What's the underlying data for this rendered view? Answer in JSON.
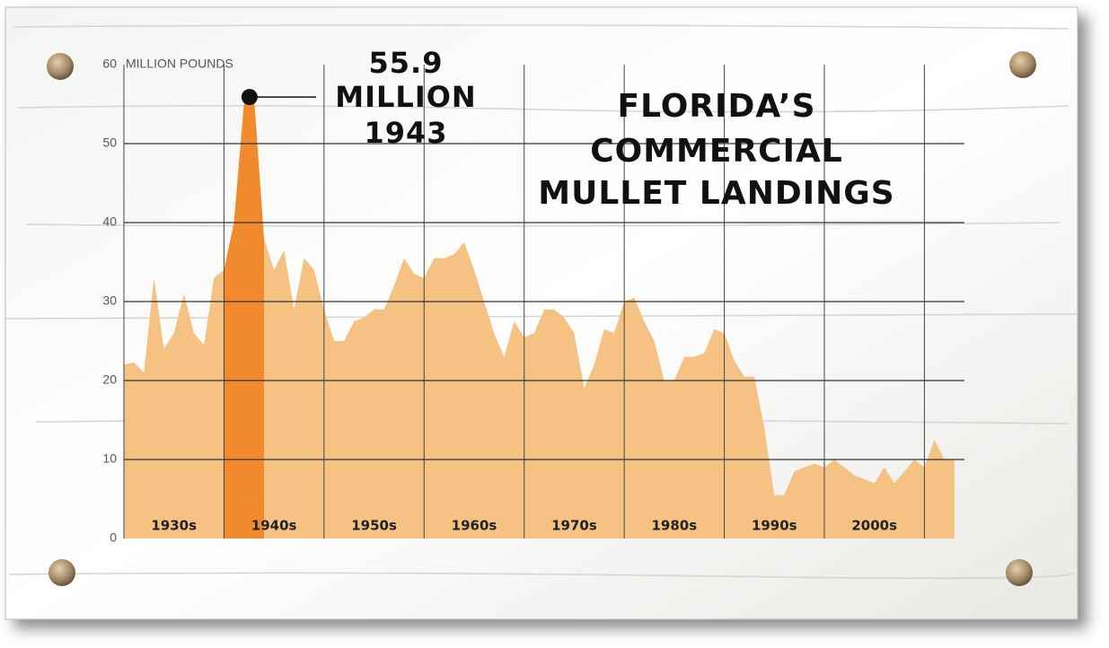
{
  "chart_data": {
    "type": "area",
    "title": [
      "FLORIDA’S",
      "COMMERCIAL",
      "MULLET LANDINGS"
    ],
    "y_label": "MILLION POUNDS",
    "x": [
      1930,
      1931,
      1932,
      1933,
      1934,
      1935,
      1936,
      1937,
      1938,
      1939,
      1940,
      1941,
      1942,
      1943,
      1944,
      1945,
      1946,
      1947,
      1948,
      1949,
      1950,
      1951,
      1952,
      1953,
      1954,
      1955,
      1956,
      1957,
      1958,
      1959,
      1960,
      1961,
      1962,
      1963,
      1964,
      1965,
      1966,
      1967,
      1968,
      1969,
      1970,
      1971,
      1972,
      1973,
      1974,
      1975,
      1976,
      1977,
      1978,
      1979,
      1980,
      1981,
      1982,
      1983,
      1984,
      1985,
      1986,
      1987,
      1988,
      1989,
      1990,
      1991,
      1992,
      1993,
      1994,
      1995,
      1996,
      1997,
      1998,
      1999,
      2000,
      2001,
      2002,
      2003,
      2004,
      2005,
      2006,
      2007,
      2008,
      2009,
      2010,
      2011,
      2012,
      2013
    ],
    "values": [
      22,
      22.3,
      21,
      33,
      24,
      26,
      31,
      26,
      24.5,
      33,
      34,
      40,
      55,
      55.9,
      38,
      34,
      36.5,
      29,
      35.5,
      34,
      29,
      25,
      25,
      27.5,
      28,
      29,
      29,
      32,
      35.5,
      33.5,
      33,
      35.5,
      35.5,
      36,
      37.5,
      34,
      30,
      26,
      23,
      27.5,
      25.5,
      26,
      29,
      29,
      28,
      26,
      19,
      22,
      26.5,
      26,
      30,
      30.5,
      27.5,
      25,
      20,
      20,
      23,
      23,
      23.5,
      26.5,
      26,
      22.5,
      20.5,
      20.5,
      14,
      5.5,
      5.5,
      8.5,
      9,
      9.5,
      9,
      10,
      9,
      8,
      7.5,
      7,
      9,
      7,
      8.5,
      10,
      9,
      12.5,
      10,
      10
    ],
    "color": "#f5c283",
    "xlim": [
      1930,
      2014
    ],
    "ylim": [
      0,
      60
    ],
    "yticks": [
      0,
      10,
      20,
      30,
      40,
      50,
      60
    ],
    "xticks": [
      1930,
      1940,
      1950,
      1960,
      1970,
      1980,
      1990,
      2000,
      2010
    ],
    "decade_labels": [
      "1930s",
      "1940s",
      "1950s",
      "1960s",
      "1970s",
      "1980s",
      "1990s",
      "2000s"
    ],
    "highlight": {
      "range": [
        1940,
        1944
      ],
      "color": "#f08a2c"
    },
    "annotation": {
      "year": 1943,
      "value": 55.9,
      "label": "55.9",
      "unit": "MILLION"
    },
    "grid": true
  }
}
